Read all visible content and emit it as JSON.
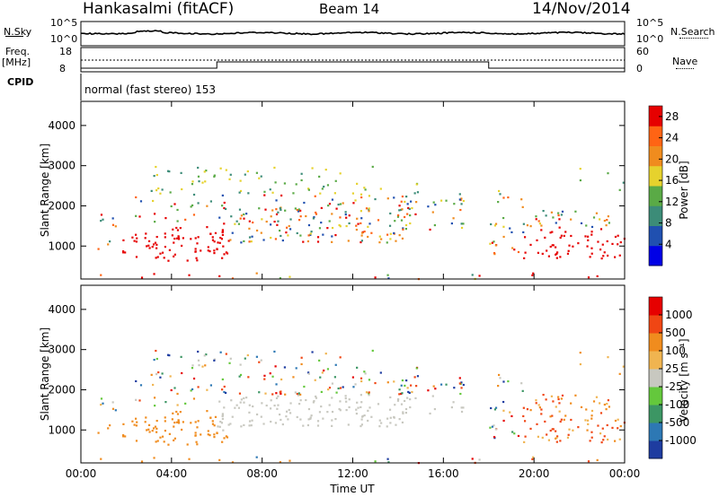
{
  "header": {
    "station": "Hankasalmi (fitACF)",
    "beam": "Beam 14",
    "date": "14/Nov/2014"
  },
  "top_panels": {
    "nsky_label": "N.Sky",
    "nsky_ticks": [
      "10^5",
      "10^0"
    ],
    "nsearch_label": "N.Search",
    "nsearch_ticks": [
      "10^5",
      "10^0"
    ],
    "freq_label": "Freq.",
    "freq_unit": "[MHz]",
    "freq_ticks": [
      "18",
      "8"
    ],
    "nave_label": "Nave",
    "nave_ticks": [
      "60",
      "0"
    ],
    "cpid_label": "CPID",
    "cpid_value": "normal (fast stereo) 153"
  },
  "chart_data": [
    {
      "type": "heatmap",
      "title": "",
      "xlabel": "Time UT",
      "ylabel": "Slant Range [km]",
      "x_ticks": [
        "00:00",
        "04:00",
        "08:00",
        "12:00",
        "16:00",
        "20:00",
        "00:00"
      ],
      "xlim": [
        0,
        24
      ],
      "y_ticks": [
        1000,
        2000,
        3000,
        4000
      ],
      "ylim": [
        180,
        4600
      ],
      "colorbar": {
        "label": "Power [dB]",
        "ticks": [
          4,
          8,
          12,
          16,
          20,
          24,
          28
        ],
        "range": [
          0,
          30
        ],
        "colors": [
          "#0000e6",
          "#2050b0",
          "#3c8c78",
          "#5aaa46",
          "#e6d22d",
          "#f08c1e",
          "#ff6414",
          "#e60000"
        ]
      }
    },
    {
      "type": "heatmap",
      "title": "",
      "xlabel": "Time UT",
      "ylabel": "Slant Range [km]",
      "x_ticks": [
        "00:00",
        "04:00",
        "08:00",
        "12:00",
        "16:00",
        "20:00",
        "00:00"
      ],
      "xlim": [
        0,
        24
      ],
      "y_ticks": [
        1000,
        2000,
        3000,
        4000
      ],
      "ylim": [
        180,
        4600
      ],
      "colorbar": {
        "label": "Velocity [m s⁻¹]",
        "ticks": [
          "1000",
          "500",
          "100",
          "25",
          "-25",
          "-100",
          "-500",
          "-1000"
        ],
        "range": [
          -1200,
          1200
        ],
        "colors": [
          "#1e3ca0",
          "#2d78b4",
          "#3c9664",
          "#64c83c",
          "#c8c8c0",
          "#f0b450",
          "#f08c1e",
          "#f04614",
          "#e60000"
        ]
      }
    }
  ]
}
